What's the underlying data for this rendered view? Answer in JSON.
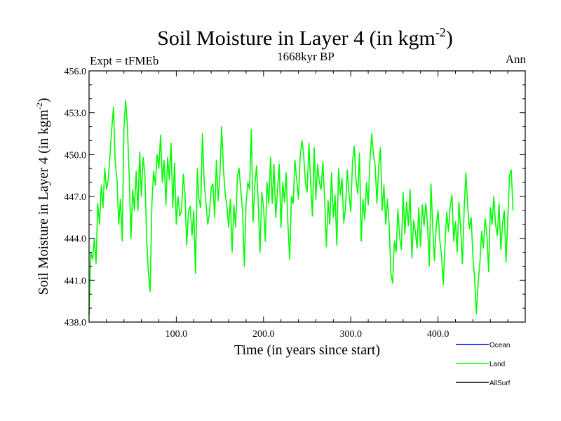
{
  "chart_data": {
    "type": "line",
    "title_main": "Soil Moisture in Layer 4 (in kgm",
    "title_sup": "-2",
    "title_close": ")",
    "subtitle_left": "Expt = tFMEb",
    "subtitle_center": "1668kyr BP",
    "subtitle_right": "Ann",
    "xlabel": "Time (in years since start)",
    "ylabel_main": "Soil Moisture in Layer 4 (in kgm",
    "ylabel_sup": "-2",
    "ylabel_close": ")",
    "xlim": [
      0,
      500
    ],
    "ylim": [
      438.0,
      456.0
    ],
    "xticks": [
      100,
      200,
      300,
      400
    ],
    "xtick_labels": [
      "100.0",
      "200.0",
      "300.0",
      "400.0"
    ],
    "yticks": [
      438,
      441,
      444,
      447,
      450,
      453,
      456
    ],
    "ytick_labels": [
      "438.0",
      "441.0",
      "444.0",
      "447.0",
      "450.0",
      "453.0",
      "456.0"
    ],
    "legend": [
      {
        "label": "Ocean",
        "color": "#0000ff"
      },
      {
        "label": "Land",
        "color": "#00ff00"
      },
      {
        "label": "AllSurf",
        "color": "#000000"
      }
    ],
    "series": [
      {
        "name": "Land",
        "color": "#00ff00",
        "x_start": 0,
        "x_step": 2,
        "values": [
          438.5,
          443.0,
          442.5,
          444.0,
          442.2,
          446.5,
          445.0,
          447.8,
          446.2,
          449.0,
          447.5,
          448.2,
          450.0,
          451.8,
          453.4,
          449.5,
          448.2,
          445.0,
          446.8,
          443.8,
          452.0,
          453.9,
          452.0,
          448.6,
          444.0,
          447.5,
          446.0,
          448.8,
          446.0,
          450.2,
          447.0,
          449.8,
          448.6,
          444.0,
          441.5,
          440.2,
          446.5,
          448.8,
          447.8,
          450.0,
          449.0,
          451.4,
          448.0,
          449.6,
          446.4,
          449.8,
          448.2,
          450.8,
          446.2,
          449.4,
          445.0,
          447.0,
          445.6,
          446.0,
          448.6,
          447.2,
          443.5,
          446.0,
          446.3,
          444.2,
          446.0,
          441.5,
          449.0,
          446.8,
          446.2,
          451.5,
          448.0,
          446.5,
          445.0,
          445.8,
          447.6,
          447.9,
          445.5,
          449.6,
          446.7,
          448.6,
          452.0,
          449.0,
          447.2,
          446.3,
          444.8,
          446.8,
          443.0,
          446.4,
          444.8,
          448.5,
          449.0,
          447.3,
          446.0,
          442.0,
          446.5,
          448.0,
          447.5,
          451.8,
          445.2,
          447.8,
          449.2,
          446.5,
          443.0,
          447.3,
          446.3,
          443.8,
          448.0,
          446.5,
          449.8,
          446.5,
          449.3,
          445.5,
          447.4,
          449.3,
          444.8,
          448.0,
          446.6,
          448.7,
          445.0,
          442.5,
          447.0,
          446.5,
          449.6,
          448.2,
          446.8,
          449.8,
          451.0,
          450.0,
          448.0,
          447.3,
          450.8,
          448.0,
          445.6,
          450.5,
          446.8,
          449.3,
          448.0,
          447.5,
          449.5,
          446.8,
          443.4,
          446.7,
          445.0,
          448.7,
          445.5,
          447.1,
          443.5,
          449.0,
          447.1,
          448.3,
          445.1,
          446.2,
          448.9,
          447.2,
          445.9,
          449.5,
          450.6,
          448.2,
          447.2,
          450.1,
          443.8,
          446.8,
          445.3,
          448.0,
          446.4,
          449.6,
          451.5,
          450.0,
          449.2,
          446.5,
          449.1,
          450.5,
          446.0,
          447.8,
          445.0,
          446.8,
          445.0,
          441.5,
          440.8,
          443.8,
          443.0,
          446.1,
          444.1,
          443.2,
          447.3,
          444.3,
          446.6,
          444.9,
          447.5,
          442.6,
          445.3,
          444.5,
          443.3,
          446.2,
          443.4,
          446.4,
          444.9,
          446.5,
          445.0,
          442.0,
          447.9,
          444.8,
          442.4,
          444.9,
          446.0,
          443.9,
          442.8,
          440.7,
          443.6,
          445.9,
          444.5,
          446.3,
          447.1,
          443.8,
          445.2,
          443.0,
          446.6,
          444.7,
          442.2,
          446.1,
          448.7,
          446.3,
          444.7,
          445.5,
          442.7,
          441.1,
          438.6,
          440.8,
          442.2,
          444.5,
          443.3,
          445.4,
          444.3,
          441.6,
          446.2,
          445.0,
          447.0,
          445.0,
          444.2,
          446.5,
          443.2,
          445.1,
          446.0,
          442.3,
          445.4,
          448.5,
          448.9,
          446.0
        ]
      }
    ]
  }
}
